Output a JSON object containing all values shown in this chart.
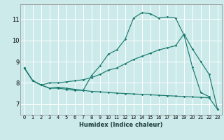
{
  "xlabel": "Humidex (Indice chaleur)",
  "bg_color": "#cceaea",
  "grid_color": "#ffffff",
  "line_color": "#1a7a6e",
  "xlim": [
    -0.5,
    23.5
  ],
  "ylim": [
    6.5,
    11.7
  ],
  "xticks": [
    0,
    1,
    2,
    3,
    4,
    5,
    6,
    7,
    8,
    9,
    10,
    11,
    12,
    13,
    14,
    15,
    16,
    17,
    18,
    19,
    20,
    21,
    22,
    23
  ],
  "yticks": [
    7,
    8,
    9,
    10,
    11
  ],
  "line1_x": [
    0,
    1,
    2,
    3,
    4,
    5,
    6,
    7,
    8,
    9,
    10,
    11,
    12,
    13,
    14,
    15,
    16,
    17,
    18,
    19,
    20,
    21,
    22
  ],
  "line1_y": [
    8.7,
    8.1,
    7.9,
    7.75,
    7.8,
    7.75,
    7.7,
    7.65,
    8.35,
    8.8,
    9.35,
    9.55,
    10.05,
    11.05,
    11.3,
    11.25,
    11.05,
    11.1,
    11.05,
    10.25,
    8.75,
    7.55,
    7.35
  ],
  "line2_x": [
    0,
    1,
    2,
    3,
    4,
    5,
    6,
    7,
    8,
    9,
    10,
    11,
    12,
    13,
    14,
    15,
    16,
    17,
    18,
    19,
    20,
    21,
    22,
    23
  ],
  "line2_y": [
    8.7,
    8.1,
    7.9,
    8.0,
    8.0,
    8.05,
    8.1,
    8.15,
    8.25,
    8.4,
    8.6,
    8.7,
    8.9,
    9.1,
    9.25,
    9.4,
    9.55,
    9.65,
    9.75,
    10.3,
    9.6,
    9.0,
    8.4,
    6.75
  ],
  "line3_x": [
    0,
    1,
    2,
    3,
    4,
    5,
    6,
    7,
    8,
    9,
    10,
    11,
    12,
    13,
    14,
    15,
    16,
    17,
    18,
    19,
    20,
    21,
    22,
    23
  ],
  "line3_y": [
    8.7,
    8.1,
    7.9,
    7.75,
    7.75,
    7.7,
    7.65,
    7.65,
    7.6,
    7.58,
    7.55,
    7.52,
    7.5,
    7.48,
    7.46,
    7.44,
    7.42,
    7.4,
    7.38,
    7.36,
    7.34,
    7.32,
    7.3,
    6.75
  ]
}
